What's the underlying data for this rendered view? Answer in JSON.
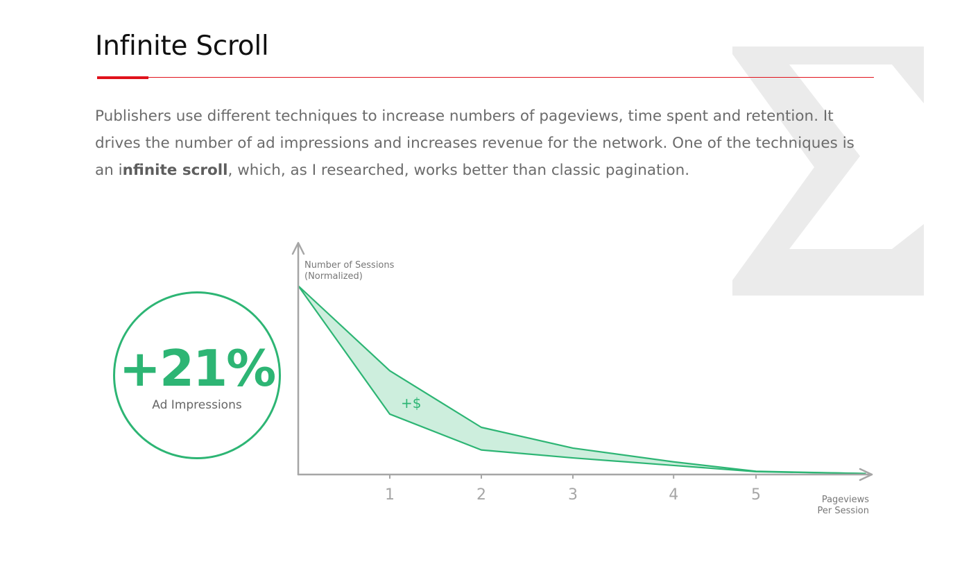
{
  "page": {
    "title": "Infinite Scroll",
    "intro": {
      "text_before": "Publishers use different techniques to increase numbers of pageviews, time spent and retention. It drives the number of ad impressions and increases revenue for the network. One of the techniques is an i",
      "bold": "nfinite scroll",
      "text_after": ", which, as I researched, works better than classic pagination."
    }
  },
  "kpi": {
    "value": "+21%",
    "label": "Ad Impressions"
  },
  "colors": {
    "accent_red": "#e0121b",
    "green": "#2db574",
    "green_fill": "#cdeedd",
    "axis_gray": "#a6a6a6",
    "logo_gray": "#ebebeb"
  },
  "icons": {
    "logo": "sigma-logo"
  },
  "chart_data": {
    "type": "area",
    "ylabel_line1": "Number of Sessions",
    "ylabel_line2": "(Normalized)",
    "xlabel_line1": "Pageviews",
    "xlabel_line2": "Per Session",
    "x_ticks": [
      "1",
      "2",
      "3",
      "4",
      "5"
    ],
    "annotation": "+$",
    "series": [
      {
        "x": [
          0,
          1,
          2,
          3,
          4.1,
          5,
          6.2
        ],
        "values": [
          1.0,
          0.55,
          0.25,
          0.14,
          0.067,
          0.017,
          0.005
        ]
      },
      {
        "x": [
          0,
          1,
          2,
          3,
          4.1,
          5,
          6.2
        ],
        "values": [
          1.0,
          0.32,
          0.13,
          0.088,
          0.048,
          0.015,
          0.005
        ]
      }
    ],
    "xlim": [
      0,
      6.3
    ],
    "ylim": [
      0,
      1.0
    ],
    "grid": false
  }
}
